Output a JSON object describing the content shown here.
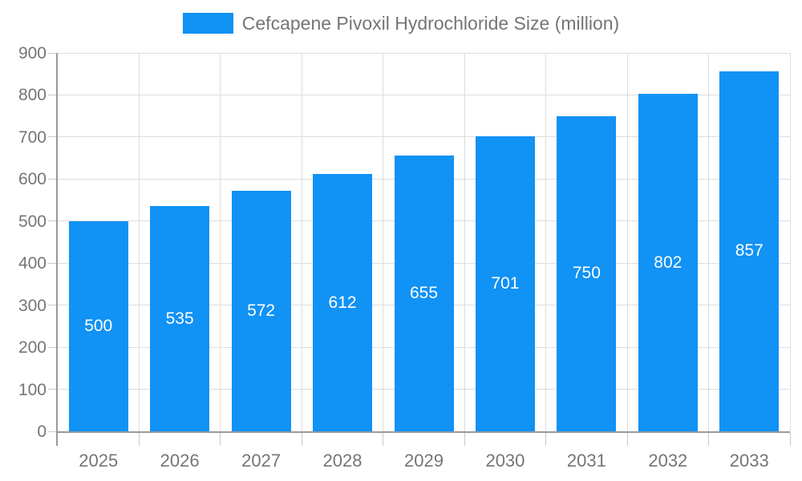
{
  "chart_data": {
    "type": "bar",
    "title": "Cefcapene Pivoxil Hydrochloride Size (million)",
    "categories": [
      "2025",
      "2026",
      "2027",
      "2028",
      "2029",
      "2030",
      "2031",
      "2032",
      "2033"
    ],
    "values": [
      500,
      535,
      572,
      612,
      655,
      701,
      750,
      802,
      857
    ],
    "xlabel": "",
    "ylabel": "",
    "ylim": [
      0,
      900
    ],
    "ytick_step": 100,
    "grid": true,
    "legend_position": "top-center",
    "bar_color": "#1192F5",
    "grid_color": "#DDDDDD",
    "axis_color": "#999999",
    "tick_color": "#C9C9C9",
    "axis_label_color": "#757575",
    "bar_label_color": "#FFFFFF"
  }
}
